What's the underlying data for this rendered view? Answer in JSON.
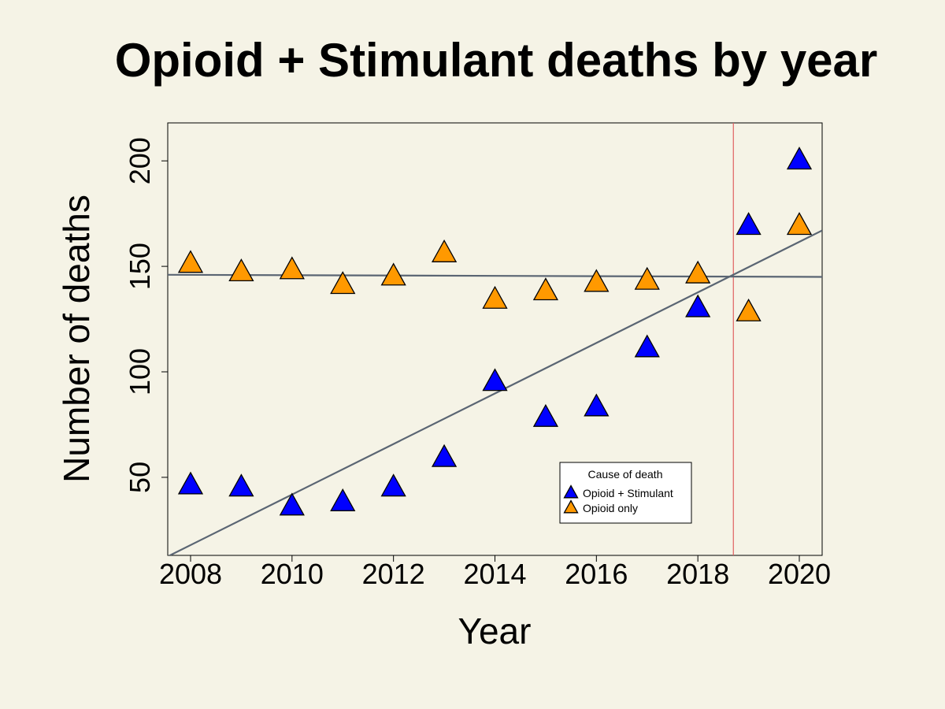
{
  "chart_data": {
    "type": "scatter",
    "title": "Opioid + Stimulant deaths by year",
    "xlabel": "Year",
    "ylabel": "Number of deaths",
    "xlim": [
      2007.55,
      2020.45
    ],
    "ylim": [
      13,
      218
    ],
    "xticks": [
      2008,
      2010,
      2012,
      2014,
      2016,
      2018,
      2020
    ],
    "yticks": [
      50,
      100,
      150,
      200
    ],
    "grid": false,
    "reference_line_x": 2018.7,
    "legend": {
      "title": "Cause of death",
      "placement": "bottom-right"
    },
    "series": [
      {
        "name": "Opioid + Stimulant",
        "color": "#0000ff",
        "marker": "triangle",
        "x": [
          2008,
          2009,
          2010,
          2011,
          2012,
          2013,
          2014,
          2015,
          2016,
          2017,
          2018,
          2019,
          2020
        ],
        "y": [
          46,
          45,
          36,
          38,
          45,
          59,
          95,
          78,
          83,
          111,
          130,
          169,
          200
        ]
      },
      {
        "name": "Opioid only",
        "color": "#ff9900",
        "marker": "triangle",
        "x": [
          2008,
          2009,
          2010,
          2011,
          2012,
          2013,
          2014,
          2015,
          2016,
          2017,
          2018,
          2019,
          2020
        ],
        "y": [
          151,
          147,
          148,
          141,
          145,
          156,
          134,
          138,
          142,
          143,
          146,
          128,
          169
        ]
      }
    ],
    "trend_lines": [
      {
        "x": [
          2007.55,
          2020.45
        ],
        "y": [
          12.5,
          167
        ]
      },
      {
        "x": [
          2007.55,
          2020.45
        ],
        "y": [
          146,
          145
        ]
      }
    ],
    "trend_color": "#5a6573",
    "reference_color": "#e06060"
  }
}
